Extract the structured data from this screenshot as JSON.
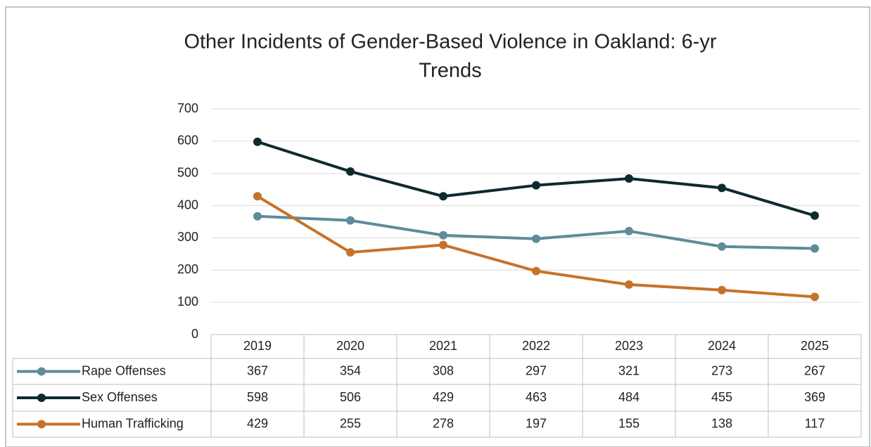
{
  "chart_data": {
    "type": "line",
    "title": [
      "Other Incidents of Gender-Based Violence in Oakland: 6-yr",
      "Trends"
    ],
    "categories": [
      "2019",
      "2020",
      "2021",
      "2022",
      "2023",
      "2024",
      "2025"
    ],
    "series": [
      {
        "name": "Rape Offenses",
        "color": "#5e8c9b",
        "values": [
          367,
          354,
          308,
          297,
          321,
          273,
          267
        ]
      },
      {
        "name": "Sex Offenses",
        "color": "#0d2b2e",
        "values": [
          598,
          506,
          429,
          463,
          484,
          455,
          369
        ]
      },
      {
        "name": "Human Trafficking",
        "color": "#c6722a",
        "values": [
          429,
          255,
          278,
          197,
          155,
          138,
          117
        ]
      }
    ],
    "ylim": [
      0,
      700
    ],
    "yticks": [
      0,
      100,
      200,
      300,
      400,
      500,
      600,
      700
    ],
    "grid": true,
    "legend": "data-table"
  }
}
